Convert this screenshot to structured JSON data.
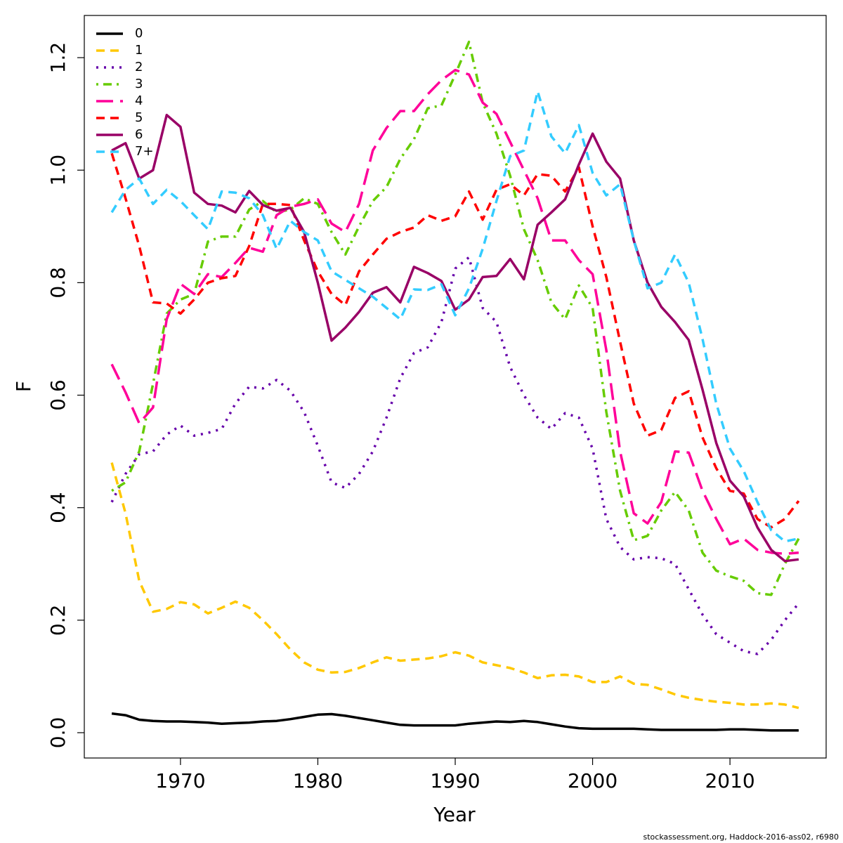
{
  "chart_data": {
    "type": "line",
    "xlabel": "Year",
    "ylabel": "F",
    "footer": "stockassessment.org, Haddock-2016-ass02, r6980",
    "x": [
      1965,
      1966,
      1967,
      1968,
      1969,
      1970,
      1971,
      1972,
      1973,
      1974,
      1975,
      1976,
      1977,
      1978,
      1979,
      1980,
      1981,
      1982,
      1983,
      1984,
      1985,
      1986,
      1987,
      1988,
      1989,
      1990,
      1991,
      1992,
      1993,
      1994,
      1995,
      1996,
      1997,
      1998,
      1999,
      2000,
      2001,
      2002,
      2003,
      2004,
      2005,
      2006,
      2007,
      2008,
      2009,
      2010,
      2011,
      2012,
      2013,
      2014,
      2015
    ],
    "xlim": [
      1963,
      2017
    ],
    "xticks": [
      1970,
      1980,
      1990,
      2000,
      2010
    ],
    "ylim": [
      -0.045,
      1.275
    ],
    "yticks": [
      {
        "value": 0,
        "label": "0.0"
      },
      0.2,
      0.4,
      0.6,
      0.8,
      {
        "value": 1,
        "label": "1.0"
      },
      1.2
    ],
    "legend": "top-left",
    "grid": false,
    "series": [
      {
        "name": "0",
        "color": "#000000",
        "dash": "solid",
        "values": [
          0.034,
          0.031,
          0.023,
          0.021,
          0.02,
          0.02,
          0.019,
          0.018,
          0.016,
          0.017,
          0.018,
          0.02,
          0.021,
          0.024,
          0.028,
          0.032,
          0.033,
          0.03,
          0.026,
          0.022,
          0.018,
          0.014,
          0.013,
          0.013,
          0.013,
          0.013,
          0.016,
          0.018,
          0.02,
          0.019,
          0.021,
          0.019,
          0.015,
          0.011,
          0.008,
          0.007,
          0.007,
          0.007,
          0.007,
          0.006,
          0.005,
          0.005,
          0.005,
          0.005,
          0.005,
          0.006,
          0.006,
          0.005,
          0.004,
          0.004,
          0.004
        ]
      },
      {
        "name": "1",
        "color": "#ffc800",
        "dash": "dashed",
        "values": [
          0.48,
          0.39,
          0.27,
          0.215,
          0.22,
          0.232,
          0.228,
          0.212,
          0.222,
          0.233,
          0.222,
          0.2,
          0.175,
          0.148,
          0.125,
          0.112,
          0.107,
          0.108,
          0.115,
          0.125,
          0.134,
          0.128,
          0.13,
          0.132,
          0.136,
          0.143,
          0.137,
          0.125,
          0.12,
          0.115,
          0.107,
          0.097,
          0.102,
          0.103,
          0.1,
          0.09,
          0.09,
          0.1,
          0.087,
          0.085,
          0.077,
          0.068,
          0.062,
          0.058,
          0.055,
          0.053,
          0.05,
          0.05,
          0.052,
          0.05,
          0.044
        ]
      },
      {
        "name": "2",
        "color": "#6600aa",
        "dash": "dotted",
        "values": [
          0.41,
          0.46,
          0.495,
          0.5,
          0.53,
          0.546,
          0.528,
          0.533,
          0.54,
          0.585,
          0.615,
          0.612,
          0.627,
          0.608,
          0.57,
          0.51,
          0.445,
          0.435,
          0.46,
          0.5,
          0.56,
          0.63,
          0.675,
          0.685,
          0.73,
          0.825,
          0.845,
          0.755,
          0.73,
          0.65,
          0.6,
          0.56,
          0.54,
          0.568,
          0.56,
          0.505,
          0.38,
          0.33,
          0.308,
          0.312,
          0.31,
          0.3,
          0.255,
          0.21,
          0.175,
          0.16,
          0.145,
          0.14,
          0.165,
          0.2,
          0.23
        ]
      },
      {
        "name": "3",
        "color": "#66cc00",
        "dash": "dotdash",
        "values": [
          0.43,
          0.445,
          0.5,
          0.62,
          0.745,
          0.77,
          0.78,
          0.873,
          0.882,
          0.882,
          0.93,
          0.945,
          0.925,
          0.93,
          0.95,
          0.94,
          0.89,
          0.85,
          0.9,
          0.945,
          0.97,
          1.02,
          1.055,
          1.11,
          1.115,
          1.17,
          1.228,
          1.12,
          1.065,
          0.99,
          0.895,
          0.84,
          0.765,
          0.735,
          0.795,
          0.755,
          0.57,
          0.43,
          0.342,
          0.35,
          0.395,
          0.428,
          0.395,
          0.32,
          0.288,
          0.278,
          0.27,
          0.248,
          0.245,
          0.3,
          0.345
        ]
      },
      {
        "name": "4",
        "color": "#ff0099",
        "dash": "longdash",
        "values": [
          0.655,
          0.605,
          0.55,
          0.578,
          0.735,
          0.798,
          0.78,
          0.815,
          0.81,
          0.835,
          0.862,
          0.855,
          0.92,
          0.935,
          0.94,
          0.948,
          0.905,
          0.89,
          0.94,
          1.035,
          1.075,
          1.105,
          1.105,
          1.135,
          1.16,
          1.178,
          1.17,
          1.12,
          1.1,
          1.05,
          1.0,
          0.95,
          0.875,
          0.875,
          0.84,
          0.815,
          0.68,
          0.5,
          0.39,
          0.372,
          0.41,
          0.5,
          0.498,
          0.43,
          0.38,
          0.335,
          0.345,
          0.325,
          0.32,
          0.318,
          0.32
        ]
      },
      {
        "name": "5",
        "color": "#ff0000",
        "dash": "dashed",
        "values": [
          1.03,
          0.95,
          0.865,
          0.765,
          0.763,
          0.745,
          0.77,
          0.8,
          0.808,
          0.812,
          0.865,
          0.94,
          0.94,
          0.938,
          0.875,
          0.82,
          0.78,
          0.76,
          0.82,
          0.85,
          0.878,
          0.89,
          0.898,
          0.92,
          0.91,
          0.918,
          0.962,
          0.912,
          0.965,
          0.975,
          0.955,
          0.993,
          0.99,
          0.962,
          1.005,
          0.9,
          0.81,
          0.695,
          0.585,
          0.528,
          0.538,
          0.595,
          0.607,
          0.525,
          0.47,
          0.43,
          0.425,
          0.38,
          0.365,
          0.38,
          0.412
        ]
      },
      {
        "name": "6",
        "color": "#990066",
        "dash": "solid",
        "values": [
          1.035,
          1.048,
          0.985,
          1.0,
          1.098,
          1.077,
          0.96,
          0.94,
          0.937,
          0.925,
          0.963,
          0.938,
          0.928,
          0.933,
          0.89,
          0.8,
          0.697,
          0.72,
          0.748,
          0.782,
          0.792,
          0.765,
          0.828,
          0.817,
          0.803,
          0.752,
          0.77,
          0.81,
          0.812,
          0.842,
          0.806,
          0.903,
          0.925,
          0.948,
          1.01,
          1.065,
          1.015,
          0.985,
          0.875,
          0.8,
          0.757,
          0.73,
          0.698,
          0.61,
          0.515,
          0.448,
          0.42,
          0.365,
          0.325,
          0.305,
          0.308
        ]
      },
      {
        "name": "7+",
        "color": "#33ccff",
        "dash": "dashed",
        "values": [
          0.925,
          0.965,
          0.985,
          0.94,
          0.965,
          0.945,
          0.92,
          0.895,
          0.962,
          0.96,
          0.95,
          0.92,
          0.86,
          0.91,
          0.89,
          0.875,
          0.82,
          0.805,
          0.79,
          0.775,
          0.755,
          0.735,
          0.788,
          0.787,
          0.797,
          0.742,
          0.79,
          0.86,
          0.945,
          1.025,
          1.035,
          1.14,
          1.06,
          1.03,
          1.08,
          0.995,
          0.955,
          0.975,
          0.875,
          0.79,
          0.8,
          0.85,
          0.8,
          0.7,
          0.585,
          0.505,
          0.465,
          0.41,
          0.36,
          0.34,
          0.345
        ]
      }
    ]
  }
}
